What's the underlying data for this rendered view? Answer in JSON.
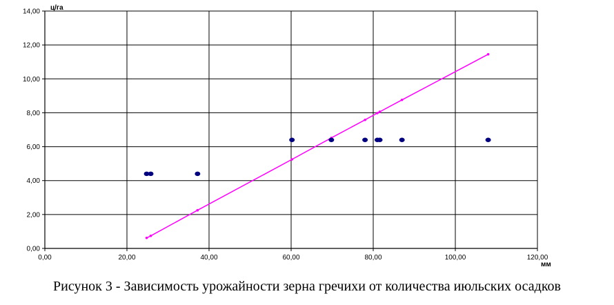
{
  "caption": "Рисунок 3 - Зависимость урожайности зерна гречихи от количества июльских осадков",
  "chart_data": {
    "type": "scatter",
    "title": "",
    "xlabel": "мм",
    "ylabel": "ц/га",
    "xlim": [
      0,
      120
    ],
    "ylim": [
      0,
      14
    ],
    "x_ticks": [
      "0,00",
      "20,00",
      "40,00",
      "60,00",
      "80,00",
      "100,00",
      "120,00"
    ],
    "y_ticks": [
      "0,00",
      "2,00",
      "4,00",
      "6,00",
      "8,00",
      "10,00",
      "12,00",
      "14,00"
    ],
    "grid": true,
    "legend": "none",
    "series": [
      {
        "kind": "scatter",
        "color": "#000080",
        "points": [
          {
            "x": 24.8,
            "y": 4.4
          },
          {
            "x": 25.8,
            "y": 4.4
          },
          {
            "x": 37.2,
            "y": 4.4
          },
          {
            "x": 60.2,
            "y": 6.4
          },
          {
            "x": 69.8,
            "y": 6.4
          },
          {
            "x": 78.0,
            "y": 6.4
          },
          {
            "x": 81.0,
            "y": 6.4
          },
          {
            "x": 81.6,
            "y": 6.4
          },
          {
            "x": 87.0,
            "y": 6.4
          },
          {
            "x": 108.0,
            "y": 6.4
          }
        ]
      },
      {
        "kind": "trend-line",
        "color": "#ff00ff",
        "points": [
          {
            "x": 24.8,
            "y": 0.62
          },
          {
            "x": 25.8,
            "y": 0.74
          },
          {
            "x": 37.2,
            "y": 2.25
          },
          {
            "x": 60.2,
            "y": 5.25
          },
          {
            "x": 69.8,
            "y": 6.52
          },
          {
            "x": 78.0,
            "y": 7.58
          },
          {
            "x": 81.0,
            "y": 7.98
          },
          {
            "x": 81.6,
            "y": 8.06
          },
          {
            "x": 87.0,
            "y": 8.76
          },
          {
            "x": 108.0,
            "y": 11.45
          }
        ]
      }
    ]
  }
}
